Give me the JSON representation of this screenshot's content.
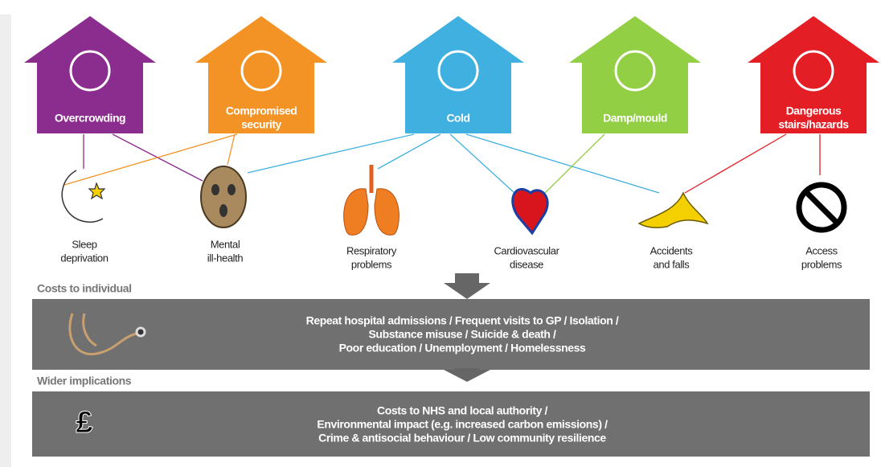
{
  "houses": [
    {
      "lines": [
        "Overcrowding"
      ],
      "color": "#8b2d8e"
    },
    {
      "lines": [
        "Compromised",
        "security"
      ],
      "color": "#f39325"
    },
    {
      "lines": [
        "Cold"
      ],
      "color": "#3fb0e0"
    },
    {
      "lines": [
        "Damp/mould"
      ],
      "color": "#93cf45"
    },
    {
      "lines": [
        "Dangerous",
        "stairs/hazards"
      ],
      "color": "#e31e25"
    }
  ],
  "outcomes": [
    {
      "lines": [
        "Sleep",
        "deprivation"
      ]
    },
    {
      "lines": [
        "Mental",
        "ill-health"
      ]
    },
    {
      "lines": [
        "Respiratory",
        "problems"
      ]
    },
    {
      "lines": [
        "Cardiovascular",
        "disease"
      ]
    },
    {
      "lines": [
        "Accidents",
        "and falls"
      ]
    },
    {
      "lines": [
        "Access",
        "problems"
      ]
    }
  ],
  "sections": [
    {
      "title": "Costs to individual",
      "lines": [
        "Repeat hospital admissions / Frequent visits to GP / Isolation /",
        "Substance misuse / Suicide & death /",
        "Poor education / Unemployment / Homelessness"
      ]
    },
    {
      "title": "Wider implications",
      "lines": [
        "Costs to NHS and local authority /",
        "Environmental impact (e.g. increased carbon emissions) /",
        "Crime & antisocial behaviour / Low community resilience"
      ]
    }
  ]
}
